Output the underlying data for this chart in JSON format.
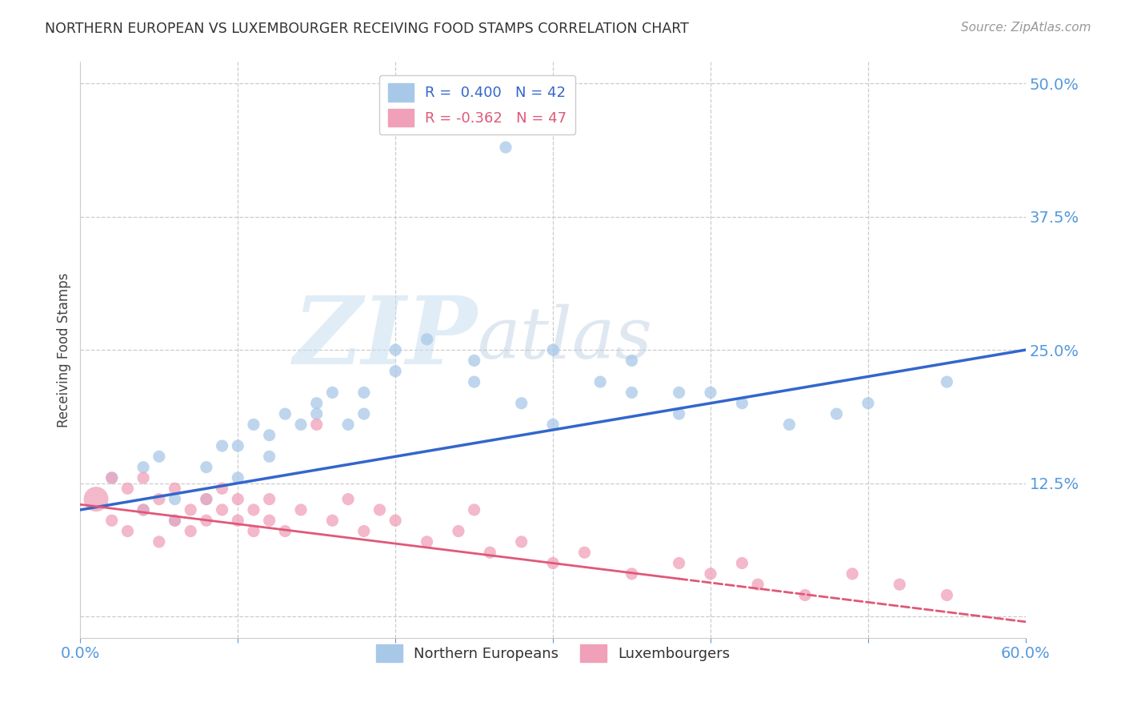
{
  "title": "NORTHERN EUROPEAN VS LUXEMBOURGER RECEIVING FOOD STAMPS CORRELATION CHART",
  "source": "Source: ZipAtlas.com",
  "ylabel": "Receiving Food Stamps",
  "xlim": [
    0.0,
    0.6
  ],
  "ylim": [
    -0.02,
    0.52
  ],
  "blue_R": 0.4,
  "blue_N": 42,
  "pink_R": -0.362,
  "pink_N": 47,
  "blue_color": "#A8C8E8",
  "pink_color": "#F0A0B8",
  "blue_line_color": "#3366CC",
  "pink_line_color": "#E05878",
  "legend_label_blue": "Northern Europeans",
  "legend_label_pink": "Luxembourgers",
  "watermark_zip": "ZIP",
  "watermark_atlas": "atlas",
  "background_color": "#FFFFFF",
  "grid_color": "#CCCCCC",
  "tick_color": "#5599DD",
  "blue_x": [
    0.27,
    0.02,
    0.04,
    0.05,
    0.06,
    0.08,
    0.09,
    0.1,
    0.11,
    0.12,
    0.13,
    0.14,
    0.15,
    0.16,
    0.17,
    0.18,
    0.04,
    0.06,
    0.08,
    0.1,
    0.12,
    0.15,
    0.18,
    0.2,
    0.22,
    0.25,
    0.28,
    0.3,
    0.33,
    0.35,
    0.38,
    0.2,
    0.25,
    0.3,
    0.35,
    0.4,
    0.45,
    0.5,
    0.55,
    0.48,
    0.42,
    0.38
  ],
  "blue_y": [
    0.44,
    0.13,
    0.14,
    0.15,
    0.11,
    0.14,
    0.16,
    0.13,
    0.18,
    0.17,
    0.19,
    0.18,
    0.2,
    0.21,
    0.18,
    0.19,
    0.1,
    0.09,
    0.11,
    0.16,
    0.15,
    0.19,
    0.21,
    0.25,
    0.26,
    0.24,
    0.2,
    0.18,
    0.22,
    0.21,
    0.19,
    0.23,
    0.22,
    0.25,
    0.24,
    0.21,
    0.18,
    0.2,
    0.22,
    0.19,
    0.2,
    0.21
  ],
  "pink_x": [
    0.01,
    0.02,
    0.02,
    0.03,
    0.03,
    0.04,
    0.04,
    0.05,
    0.05,
    0.06,
    0.06,
    0.07,
    0.07,
    0.08,
    0.08,
    0.09,
    0.09,
    0.1,
    0.1,
    0.11,
    0.11,
    0.12,
    0.12,
    0.13,
    0.14,
    0.15,
    0.16,
    0.17,
    0.18,
    0.19,
    0.2,
    0.22,
    0.24,
    0.26,
    0.28,
    0.3,
    0.32,
    0.35,
    0.38,
    0.4,
    0.43,
    0.46,
    0.49,
    0.52,
    0.55,
    0.42,
    0.25
  ],
  "pink_y": [
    0.11,
    0.09,
    0.13,
    0.08,
    0.12,
    0.1,
    0.13,
    0.07,
    0.11,
    0.09,
    0.12,
    0.1,
    0.08,
    0.11,
    0.09,
    0.12,
    0.1,
    0.09,
    0.11,
    0.08,
    0.1,
    0.09,
    0.11,
    0.08,
    0.1,
    0.18,
    0.09,
    0.11,
    0.08,
    0.1,
    0.09,
    0.07,
    0.08,
    0.06,
    0.07,
    0.05,
    0.06,
    0.04,
    0.05,
    0.04,
    0.03,
    0.02,
    0.04,
    0.03,
    0.02,
    0.05,
    0.1
  ],
  "blue_line_x0": 0.0,
  "blue_line_y0": 0.1,
  "blue_line_x1": 0.6,
  "blue_line_y1": 0.25,
  "pink_line_x0": 0.0,
  "pink_line_y0": 0.105,
  "pink_line_x1": 0.6,
  "pink_line_y1": -0.005
}
